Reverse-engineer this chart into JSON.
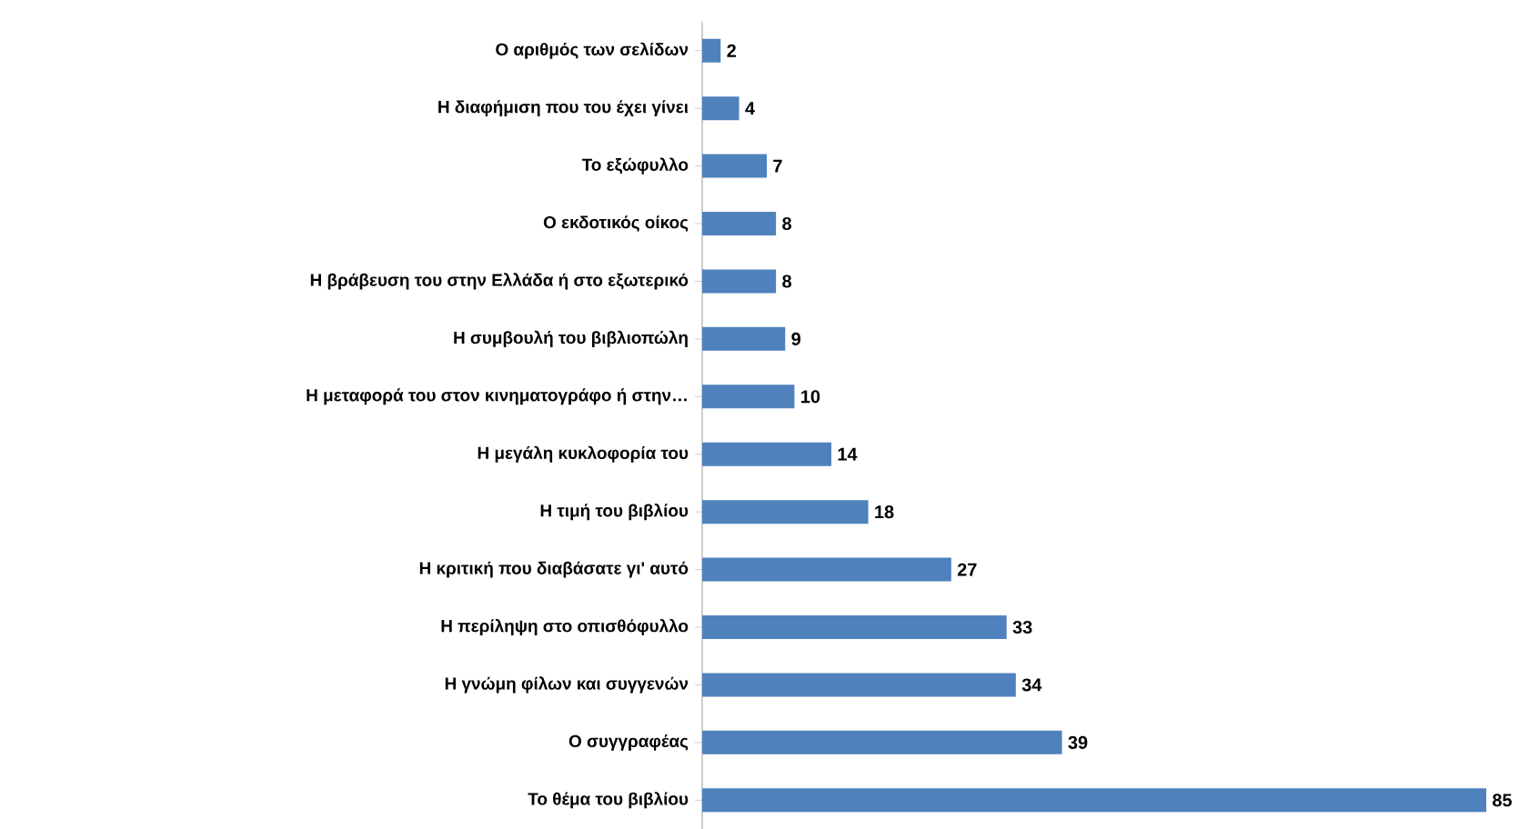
{
  "chart_data": {
    "type": "bar",
    "orientation": "horizontal",
    "data_labels": true,
    "tick_labels": "y",
    "color": "#4f81bd",
    "categories": [
      "Ο αριθμός των σελίδων",
      "Η διαφήμιση που του έχει γίνει",
      "Το εξώφυλλο",
      "Ο εκδοτικός οίκος",
      "Η βράβευση του στην Ελλάδα ή στο εξωτερικό",
      "Η συμβουλή του βιβλιοπώλη",
      "Η μεταφορά του στον κινηματογράφο ή στην…",
      "Η μεγάλη κυκλοφορία του",
      "Η τιμή του βιβλίου",
      "Η κριτική που διαβάσατε γι' αυτό",
      "Η περίληψη στο οπισθόφυλλο",
      "Η γνώμη φίλων και συγγενών",
      "Ο συγγραφέας",
      "Το θέμα του βιβλίου"
    ],
    "values": [
      2,
      4,
      7,
      8,
      8,
      9,
      10,
      14,
      18,
      27,
      33,
      34,
      39,
      85
    ]
  }
}
